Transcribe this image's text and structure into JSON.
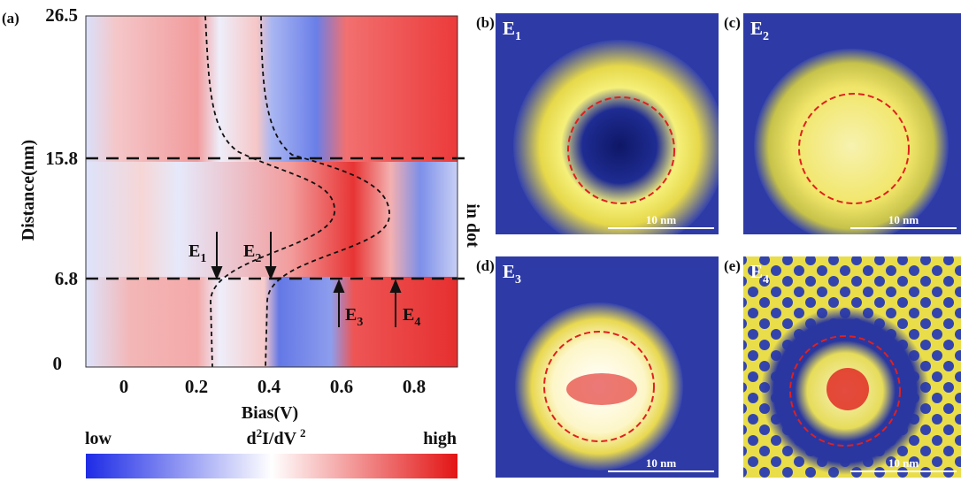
{
  "panel_a": {
    "label": "(a)",
    "x_axis_title": "Bias(V)",
    "y_axis_title": "Distance(nm)",
    "x_ticks": [
      "0",
      "0.2",
      "0.4",
      "0.6",
      "0.8"
    ],
    "y_ticks": [
      "0",
      "6.8",
      "15.8",
      "26.5"
    ],
    "side_label": "in dot",
    "markers": [
      {
        "main": "E",
        "sub": "1"
      },
      {
        "main": "E",
        "sub": "2"
      },
      {
        "main": "E",
        "sub": "3"
      },
      {
        "main": "E",
        "sub": "4"
      }
    ]
  },
  "colorbar": {
    "low": "low",
    "high": "high",
    "title": [
      "d",
      "2",
      "I/dV",
      "2"
    ]
  },
  "panels": [
    {
      "label": "(b)",
      "main": "E",
      "sub": "1",
      "scale": "10 nm"
    },
    {
      "label": "(c)",
      "main": "E",
      "sub": "2",
      "scale": "10 nm"
    },
    {
      "label": "(d)",
      "main": "E",
      "sub": "3",
      "scale": "10 nm"
    },
    {
      "label": "(e)",
      "main": "E",
      "sub": "4",
      "scale": "10 nm"
    }
  ]
}
